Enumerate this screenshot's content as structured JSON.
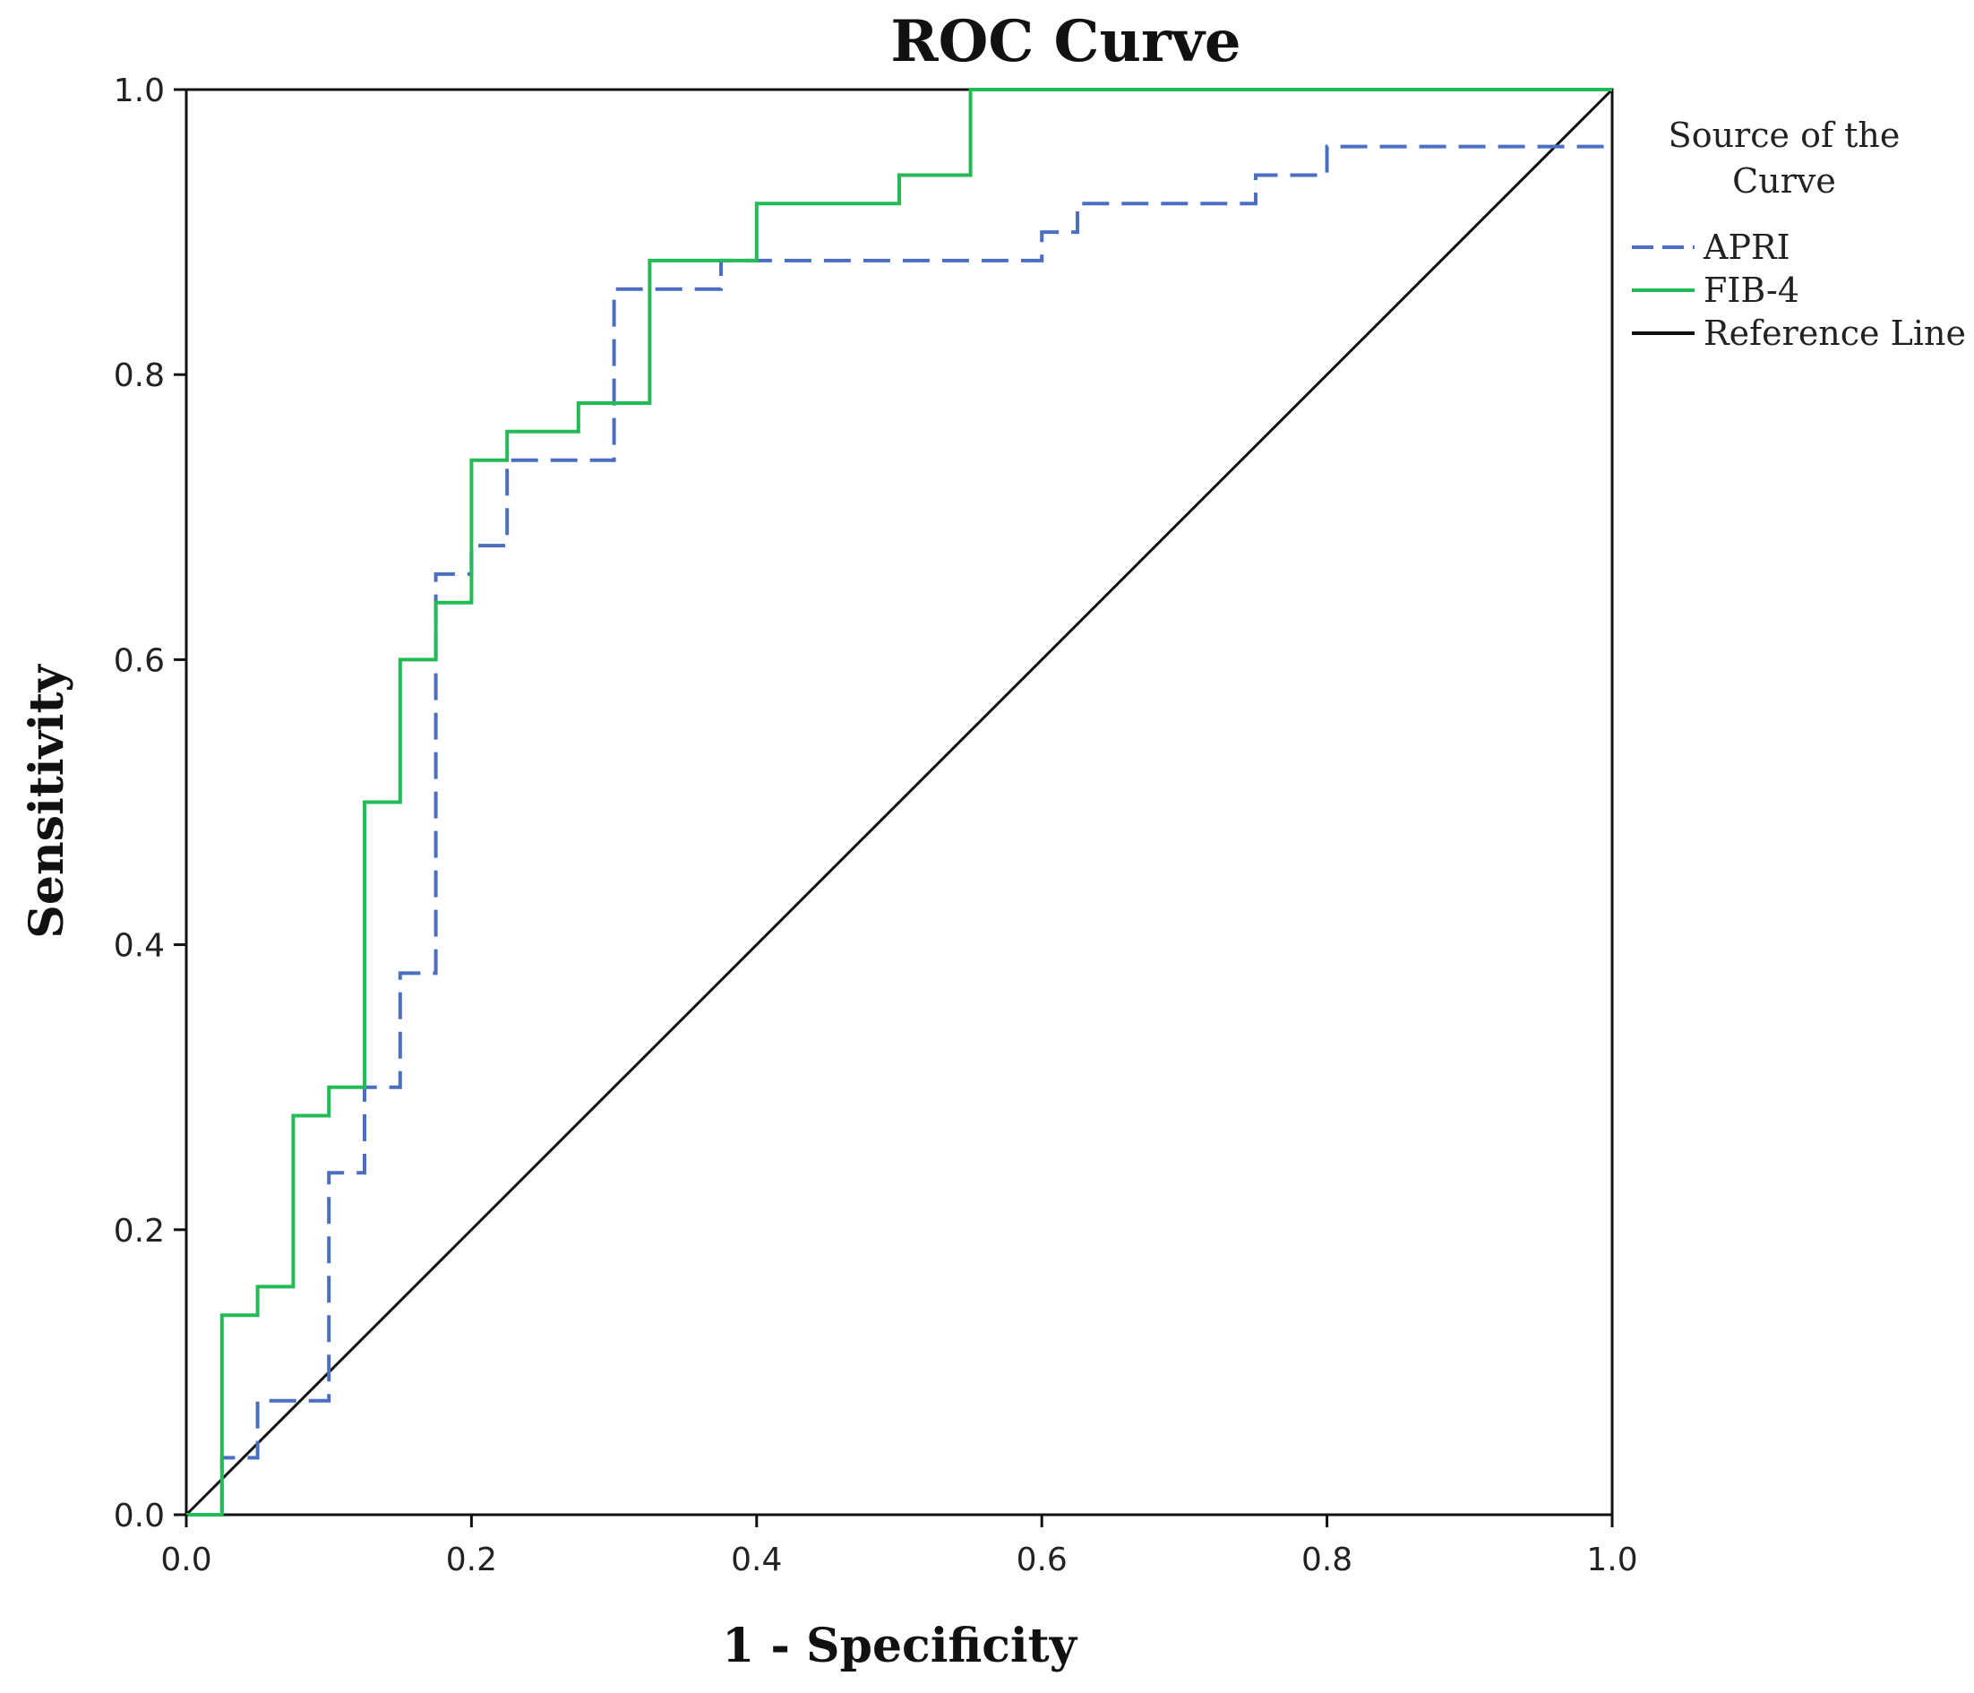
{
  "chart_data": {
    "type": "line",
    "title": "ROC Curve",
    "xlabel": "1 - Specificity",
    "ylabel": "Sensitivity",
    "xlim": [
      0,
      1
    ],
    "ylim": [
      0,
      1
    ],
    "x_ticks": [
      "0.0",
      "0.2",
      "0.4",
      "0.6",
      "0.8",
      "1.0"
    ],
    "y_ticks": [
      "0.0",
      "0.2",
      "0.4",
      "0.6",
      "0.8",
      "1.0"
    ],
    "grid": false,
    "legend": {
      "title_line1": "Source of the",
      "title_line2": "Curve",
      "position": "right"
    },
    "series": [
      {
        "name": "APRI",
        "color": "#4a6fc2",
        "style": "dashed",
        "points": [
          [
            0,
            0
          ],
          [
            0.025,
            0
          ],
          [
            0.025,
            0.04
          ],
          [
            0.05,
            0.04
          ],
          [
            0.05,
            0.08
          ],
          [
            0.1,
            0.08
          ],
          [
            0.1,
            0.24
          ],
          [
            0.125,
            0.24
          ],
          [
            0.125,
            0.3
          ],
          [
            0.15,
            0.3
          ],
          [
            0.15,
            0.38
          ],
          [
            0.175,
            0.38
          ],
          [
            0.175,
            0.66
          ],
          [
            0.2,
            0.66
          ],
          [
            0.2,
            0.68
          ],
          [
            0.225,
            0.68
          ],
          [
            0.225,
            0.74
          ],
          [
            0.3,
            0.74
          ],
          [
            0.3,
            0.86
          ],
          [
            0.375,
            0.86
          ],
          [
            0.375,
            0.88
          ],
          [
            0.6,
            0.88
          ],
          [
            0.6,
            0.9
          ],
          [
            0.625,
            0.9
          ],
          [
            0.625,
            0.92
          ],
          [
            0.75,
            0.92
          ],
          [
            0.75,
            0.94
          ],
          [
            0.8,
            0.94
          ],
          [
            0.8,
            0.96
          ],
          [
            1.0,
            0.96
          ]
        ]
      },
      {
        "name": "FIB-4",
        "color": "#22bb55",
        "style": "solid",
        "points": [
          [
            0,
            0
          ],
          [
            0.025,
            0
          ],
          [
            0.025,
            0.14
          ],
          [
            0.05,
            0.14
          ],
          [
            0.05,
            0.16
          ],
          [
            0.075,
            0.16
          ],
          [
            0.075,
            0.28
          ],
          [
            0.1,
            0.28
          ],
          [
            0.1,
            0.3
          ],
          [
            0.125,
            0.3
          ],
          [
            0.125,
            0.5
          ],
          [
            0.15,
            0.5
          ],
          [
            0.15,
            0.6
          ],
          [
            0.175,
            0.6
          ],
          [
            0.175,
            0.64
          ],
          [
            0.2,
            0.64
          ],
          [
            0.2,
            0.74
          ],
          [
            0.225,
            0.74
          ],
          [
            0.225,
            0.76
          ],
          [
            0.275,
            0.76
          ],
          [
            0.275,
            0.78
          ],
          [
            0.325,
            0.78
          ],
          [
            0.325,
            0.88
          ],
          [
            0.4,
            0.88
          ],
          [
            0.4,
            0.92
          ],
          [
            0.5,
            0.92
          ],
          [
            0.5,
            0.94
          ],
          [
            0.55,
            0.94
          ],
          [
            0.55,
            1.0
          ],
          [
            1.0,
            1.0
          ]
        ]
      },
      {
        "name": "Reference Line",
        "color": "#111111",
        "style": "solid",
        "points": [
          [
            0,
            0
          ],
          [
            1,
            1
          ]
        ]
      }
    ]
  }
}
